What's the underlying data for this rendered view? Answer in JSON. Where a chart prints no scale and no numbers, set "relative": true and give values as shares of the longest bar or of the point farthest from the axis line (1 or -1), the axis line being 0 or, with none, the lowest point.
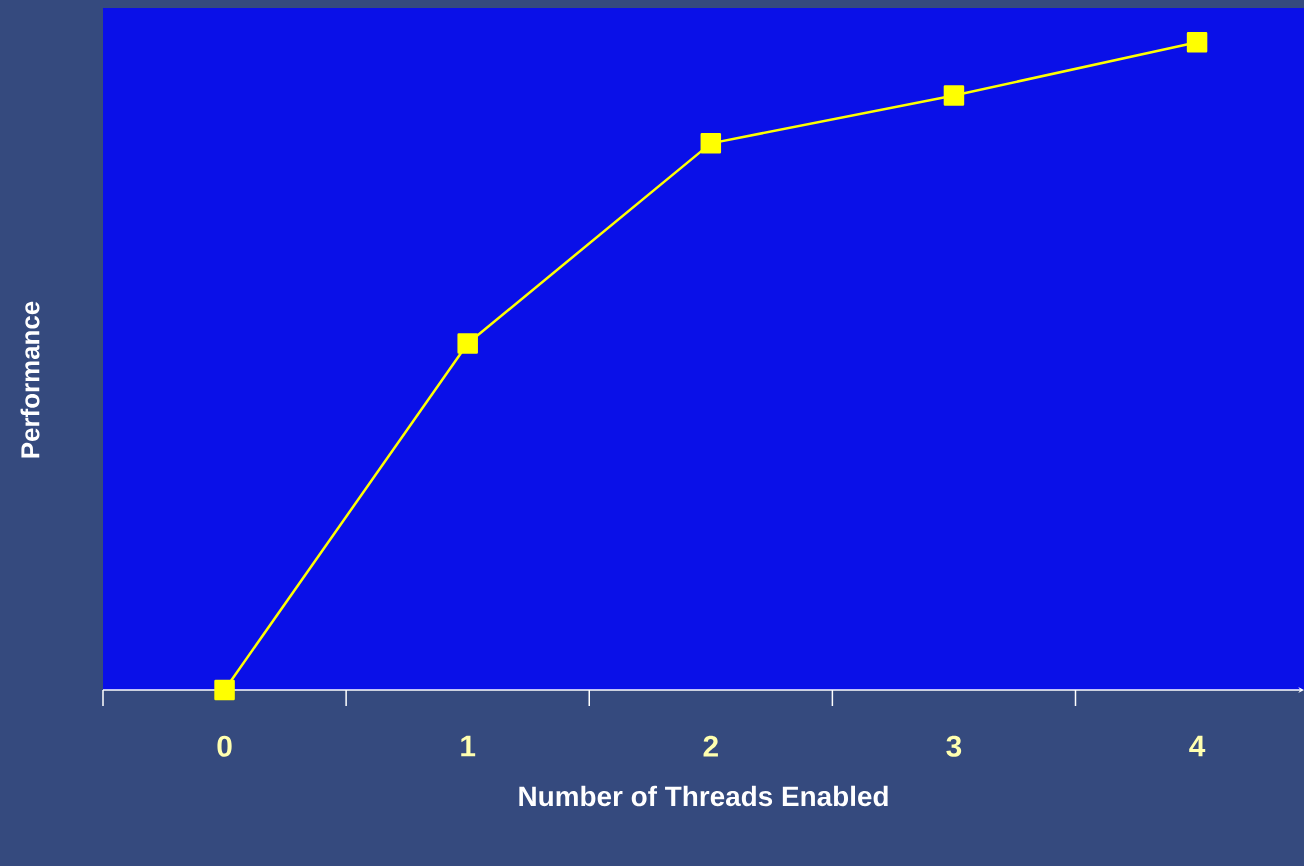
{
  "chart_data": {
    "type": "line",
    "xlabel": "Number of Threads Enabled",
    "ylabel": "Performance",
    "categories": [
      "0",
      "1",
      "2",
      "3",
      "4"
    ],
    "relative": true,
    "series": [
      {
        "color": "#ffff00",
        "values": [
          0,
          0.535,
          0.844,
          0.918,
          1
        ]
      }
    ],
    "marker": "square",
    "line_style": "solid",
    "grid": false
  }
}
